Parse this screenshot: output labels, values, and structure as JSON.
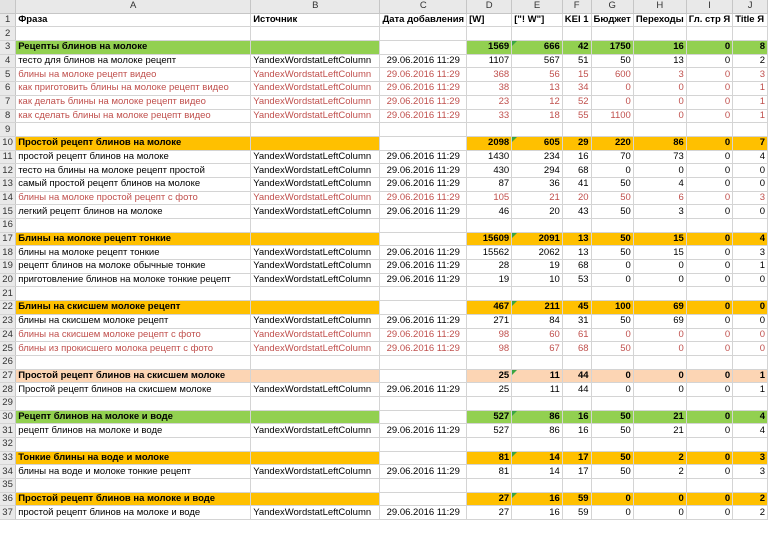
{
  "columns": [
    "A",
    "B",
    "C",
    "D",
    "E",
    "F",
    "G",
    "H",
    "I",
    "J"
  ],
  "headers": [
    "Фраза",
    "Источник",
    "Дата добавления",
    "[W]",
    "[\"! W\"]",
    "KEI 1",
    "Бюджет",
    "Переходы",
    "Гл. стр Я",
    "Title Я"
  ],
  "rows": [
    {
      "n": "2",
      "type": "blank",
      "cells": [
        "",
        "",
        "",
        "",
        "",
        "",
        "",
        "",
        "",
        ""
      ]
    },
    {
      "n": "3",
      "type": "group",
      "color": "green",
      "cells": [
        "Рецепты блинов на молоке",
        "",
        "",
        "1569",
        "666",
        "42",
        "1750",
        "16",
        "0",
        "8"
      ]
    },
    {
      "n": "4",
      "type": "item",
      "cells": [
        "тесто для блинов на молоке рецепт",
        "YandexWordstatLeftColumn",
        "29.06.2016 11:29",
        "1107",
        "567",
        "51",
        "50",
        "13",
        "0",
        "2"
      ]
    },
    {
      "n": "5",
      "type": "red",
      "cells": [
        "блины на молоке рецепт видео",
        "YandexWordstatLeftColumn",
        "29.06.2016 11:29",
        "368",
        "56",
        "15",
        "600",
        "3",
        "0",
        "3"
      ]
    },
    {
      "n": "6",
      "type": "red",
      "cells": [
        "как приготовить блины на молоке рецепт видео",
        "YandexWordstatLeftColumn",
        "29.06.2016 11:29",
        "38",
        "13",
        "34",
        "0",
        "0",
        "0",
        "1"
      ]
    },
    {
      "n": "7",
      "type": "red",
      "cells": [
        "как делать блины на молоке рецепт видео",
        "YandexWordstatLeftColumn",
        "29.06.2016 11:29",
        "23",
        "12",
        "52",
        "0",
        "0",
        "0",
        "1"
      ]
    },
    {
      "n": "8",
      "type": "red",
      "cells": [
        "как сделать блины на молоке рецепт видео",
        "YandexWordstatLeftColumn",
        "29.06.2016 11:29",
        "33",
        "18",
        "55",
        "1100",
        "0",
        "0",
        "1"
      ]
    },
    {
      "n": "9",
      "type": "blank",
      "cells": [
        "",
        "",
        "",
        "",
        "",
        "",
        "",
        "",
        "",
        ""
      ]
    },
    {
      "n": "10",
      "type": "group",
      "color": "orange",
      "cells": [
        "Простой рецепт блинов на молоке",
        "",
        "",
        "2098",
        "605",
        "29",
        "220",
        "86",
        "0",
        "7"
      ]
    },
    {
      "n": "11",
      "type": "item",
      "cells": [
        "простой рецепт блинов на молоке",
        "YandexWordstatLeftColumn",
        "29.06.2016 11:29",
        "1430",
        "234",
        "16",
        "70",
        "73",
        "0",
        "4"
      ]
    },
    {
      "n": "12",
      "type": "item",
      "cells": [
        "тесто на блины на молоке рецепт простой",
        "YandexWordstatLeftColumn",
        "29.06.2016 11:29",
        "430",
        "294",
        "68",
        "0",
        "0",
        "0",
        "0"
      ]
    },
    {
      "n": "13",
      "type": "item",
      "cells": [
        "самый простой рецепт блинов на молоке",
        "YandexWordstatLeftColumn",
        "29.06.2016 11:29",
        "87",
        "36",
        "41",
        "50",
        "4",
        "0",
        "0"
      ]
    },
    {
      "n": "14",
      "type": "red",
      "cells": [
        "блины на молоке простой рецепт с фото",
        "YandexWordstatLeftColumn",
        "29.06.2016 11:29",
        "105",
        "21",
        "20",
        "50",
        "6",
        "0",
        "3"
      ]
    },
    {
      "n": "15",
      "type": "item",
      "cells": [
        "легкий рецепт блинов на молоке",
        "YandexWordstatLeftColumn",
        "29.06.2016 11:29",
        "46",
        "20",
        "43",
        "50",
        "3",
        "0",
        "0"
      ]
    },
    {
      "n": "16",
      "type": "blank",
      "cells": [
        "",
        "",
        "",
        "",
        "",
        "",
        "",
        "",
        "",
        ""
      ]
    },
    {
      "n": "17",
      "type": "group",
      "color": "orange",
      "cells": [
        "Блины на молоке рецепт тонкие",
        "",
        "",
        "15609",
        "2091",
        "13",
        "50",
        "15",
        "0",
        "4"
      ]
    },
    {
      "n": "18",
      "type": "item",
      "cells": [
        "блины на молоке рецепт тонкие",
        "YandexWordstatLeftColumn",
        "29.06.2016 11:29",
        "15562",
        "2062",
        "13",
        "50",
        "15",
        "0",
        "3"
      ]
    },
    {
      "n": "19",
      "type": "item",
      "cells": [
        "рецепт блинов на молоке обычные тонкие",
        "YandexWordstatLeftColumn",
        "29.06.2016 11:29",
        "28",
        "19",
        "68",
        "0",
        "0",
        "0",
        "1"
      ]
    },
    {
      "n": "20",
      "type": "item",
      "cells": [
        "приготовление блинов на молоке тонкие рецепт",
        "YandexWordstatLeftColumn",
        "29.06.2016 11:29",
        "19",
        "10",
        "53",
        "0",
        "0",
        "0",
        "0"
      ]
    },
    {
      "n": "21",
      "type": "blank",
      "cells": [
        "",
        "",
        "",
        "",
        "",
        "",
        "",
        "",
        "",
        ""
      ]
    },
    {
      "n": "22",
      "type": "group",
      "color": "orange",
      "cells": [
        "Блины на скисшем молоке рецепт",
        "",
        "",
        "467",
        "211",
        "45",
        "100",
        "69",
        "0",
        "0"
      ]
    },
    {
      "n": "23",
      "type": "item",
      "cells": [
        "блины на скисшем молоке рецепт",
        "YandexWordstatLeftColumn",
        "29.06.2016 11:29",
        "271",
        "84",
        "31",
        "50",
        "69",
        "0",
        "0"
      ]
    },
    {
      "n": "24",
      "type": "red",
      "cells": [
        "блины на скисшем молоке рецепт с фото",
        "YandexWordstatLeftColumn",
        "29.06.2016 11:29",
        "98",
        "60",
        "61",
        "0",
        "0",
        "0",
        "0"
      ]
    },
    {
      "n": "25",
      "type": "red",
      "cells": [
        "блины из прокисшего молока рецепт с фото",
        "YandexWordstatLeftColumn",
        "29.06.2016 11:29",
        "98",
        "67",
        "68",
        "50",
        "0",
        "0",
        "0"
      ]
    },
    {
      "n": "26",
      "type": "blank",
      "cells": [
        "",
        "",
        "",
        "",
        "",
        "",
        "",
        "",
        "",
        ""
      ]
    },
    {
      "n": "27",
      "type": "group",
      "color": "peach",
      "cells": [
        "Простой рецепт блинов на скисшем молоке",
        "",
        "",
        "25",
        "11",
        "44",
        "0",
        "0",
        "0",
        "1"
      ]
    },
    {
      "n": "28",
      "type": "item",
      "cells": [
        "Простой рецепт блинов на скисшем молоке",
        "YandexWordstatLeftColumn",
        "29.06.2016 11:29",
        "25",
        "11",
        "44",
        "0",
        "0",
        "0",
        "1"
      ]
    },
    {
      "n": "29",
      "type": "blank",
      "cells": [
        "",
        "",
        "",
        "",
        "",
        "",
        "",
        "",
        "",
        ""
      ]
    },
    {
      "n": "30",
      "type": "group",
      "color": "green",
      "cells": [
        "Рецепт блинов на молоке и воде",
        "",
        "",
        "527",
        "86",
        "16",
        "50",
        "21",
        "0",
        "4"
      ]
    },
    {
      "n": "31",
      "type": "item",
      "cells": [
        "рецепт блинов на молоке и воде",
        "YandexWordstatLeftColumn",
        "29.06.2016 11:29",
        "527",
        "86",
        "16",
        "50",
        "21",
        "0",
        "4"
      ]
    },
    {
      "n": "32",
      "type": "blank",
      "cells": [
        "",
        "",
        "",
        "",
        "",
        "",
        "",
        "",
        "",
        ""
      ]
    },
    {
      "n": "33",
      "type": "group",
      "color": "orange",
      "cells": [
        "Тонкие блины на воде и молоке",
        "",
        "",
        "81",
        "14",
        "17",
        "50",
        "2",
        "0",
        "3"
      ]
    },
    {
      "n": "34",
      "type": "item",
      "cells": [
        "блины на воде и молоке тонкие рецепт",
        "YandexWordstatLeftColumn",
        "29.06.2016 11:29",
        "81",
        "14",
        "17",
        "50",
        "2",
        "0",
        "3"
      ]
    },
    {
      "n": "35",
      "type": "blank",
      "cells": [
        "",
        "",
        "",
        "",
        "",
        "",
        "",
        "",
        "",
        ""
      ]
    },
    {
      "n": "36",
      "type": "group",
      "color": "orange",
      "cells": [
        "Простой рецепт блинов на молоке и воде",
        "",
        "",
        "27",
        "16",
        "59",
        "0",
        "0",
        "0",
        "2"
      ]
    },
    {
      "n": "37",
      "type": "item",
      "cells": [
        "простой рецепт блинов на молоке и воде",
        "YandexWordstatLeftColumn",
        "29.06.2016 11:29",
        "27",
        "16",
        "59",
        "0",
        "0",
        "0",
        "2"
      ]
    }
  ],
  "colors": {
    "green": "#92d050",
    "orange": "#ffc000",
    "peach": "#fcd5b4",
    "red_text": "#c0504d",
    "marker": "#3aa542"
  }
}
